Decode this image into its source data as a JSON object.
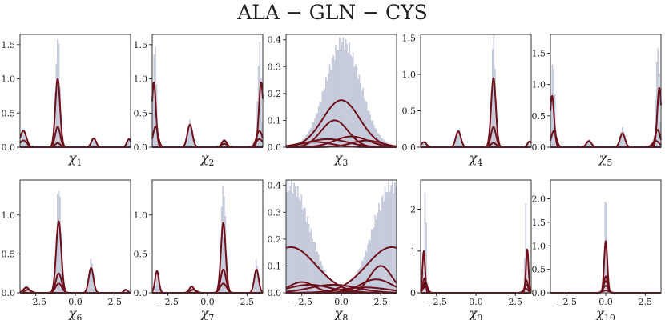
{
  "title": "ALA − GLN − CYS",
  "colors": {
    "hist": "#c6cbdc",
    "curve": "#6e0f1a",
    "axis": "#333333"
  },
  "chart_data": [
    {
      "type": "histogram+density",
      "xlabel": "χ",
      "xlabel_sub": "1",
      "xlim": [
        -3.3,
        3.3
      ],
      "ylim": [
        0,
        1.65
      ],
      "yticks": [
        0.0,
        0.5,
        1.0,
        1.5
      ],
      "yticklabels": [
        "0.0",
        "0.5",
        "1.0",
        "1.5"
      ],
      "xticks": [],
      "xticklabels": [],
      "hist_peaks": [
        {
          "mu": -3.1,
          "sigma": 0.12,
          "amp": 0.28
        },
        {
          "mu": -1.05,
          "sigma": 0.13,
          "amp": 1.6
        },
        {
          "mu": 1.1,
          "sigma": 0.12,
          "amp": 0.13
        },
        {
          "mu": 3.15,
          "sigma": 0.1,
          "amp": 0.12
        }
      ],
      "components": [
        {
          "mu": -1.05,
          "sigma": 0.14,
          "amp": 1.0
        },
        {
          "mu": -1.05,
          "sigma": 0.15,
          "amp": 0.3
        },
        {
          "mu": -1.05,
          "sigma": 0.16,
          "amp": 0.06
        },
        {
          "mu": -3.1,
          "sigma": 0.18,
          "amp": 0.24
        },
        {
          "mu": -3.1,
          "sigma": 0.2,
          "amp": 0.1
        },
        {
          "mu": 1.1,
          "sigma": 0.14,
          "amp": 0.13
        },
        {
          "mu": 3.2,
          "sigma": 0.12,
          "amp": 0.12
        }
      ]
    },
    {
      "type": "histogram+density",
      "xlabel": "χ",
      "xlabel_sub": "2",
      "xlim": [
        -3.3,
        3.3
      ],
      "ylim": [
        0,
        1.65
      ],
      "yticks": [
        0.0,
        0.5,
        1.0,
        1.5
      ],
      "yticklabels": [
        "0.0",
        "0.5",
        "1.0",
        "1.5"
      ],
      "xticks": [],
      "xticklabels": [],
      "hist_peaks": [
        {
          "mu": -3.15,
          "sigma": 0.1,
          "amp": 1.55
        },
        {
          "mu": -1.05,
          "sigma": 0.15,
          "amp": 0.38
        },
        {
          "mu": 1.0,
          "sigma": 0.15,
          "amp": 0.12
        },
        {
          "mu": 3.1,
          "sigma": 0.1,
          "amp": 1.5
        }
      ],
      "components": [
        {
          "mu": -3.2,
          "sigma": 0.12,
          "amp": 0.95
        },
        {
          "mu": -3.1,
          "sigma": 0.15,
          "amp": 0.3
        },
        {
          "mu": -1.05,
          "sigma": 0.15,
          "amp": 0.33
        },
        {
          "mu": 1.0,
          "sigma": 0.15,
          "amp": 0.1
        },
        {
          "mu": 1.0,
          "sigma": 0.18,
          "amp": 0.05
        },
        {
          "mu": 3.2,
          "sigma": 0.13,
          "amp": 0.95
        },
        {
          "mu": 3.1,
          "sigma": 0.18,
          "amp": 0.24
        },
        {
          "mu": 3.1,
          "sigma": 0.2,
          "amp": 0.12
        }
      ]
    },
    {
      "type": "histogram+density",
      "xlabel": "χ",
      "xlabel_sub": "3",
      "xlim": [
        -3.3,
        3.3
      ],
      "ylim": [
        0,
        0.42
      ],
      "yticks": [
        0.0,
        0.1,
        0.2,
        0.3,
        0.4
      ],
      "yticklabels": [
        "0.0",
        "0.1",
        "0.2",
        "0.3",
        "0.4"
      ],
      "xticks": [],
      "xticklabels": [],
      "hist_peaks": [
        {
          "mu": 0.1,
          "sigma": 1.05,
          "amp": 0.39
        }
      ],
      "components": [
        {
          "mu": 0.0,
          "sigma": 1.1,
          "amp": 0.175
        },
        {
          "mu": -0.4,
          "sigma": 0.8,
          "amp": 0.1
        },
        {
          "mu": 0.6,
          "sigma": 1.0,
          "amp": 0.04
        },
        {
          "mu": -0.8,
          "sigma": 1.2,
          "amp": 0.03
        },
        {
          "mu": 1.5,
          "sigma": 0.9,
          "amp": 0.025
        },
        {
          "mu": -1.6,
          "sigma": 1.0,
          "amp": 0.02
        }
      ]
    },
    {
      "type": "histogram+density",
      "xlabel": "χ",
      "xlabel_sub": "4",
      "xlim": [
        -3.3,
        3.3
      ],
      "ylim": [
        0,
        1.55
      ],
      "yticks": [
        0.0,
        0.5,
        1.0,
        1.5
      ],
      "yticklabels": [
        "0.0",
        "0.5",
        "1.0",
        "1.5"
      ],
      "xticks": [],
      "xticklabels": [],
      "hist_peaks": [
        {
          "mu": -3.1,
          "sigma": 0.1,
          "amp": 0.06
        },
        {
          "mu": -1.05,
          "sigma": 0.13,
          "amp": 0.26
        },
        {
          "mu": 1.05,
          "sigma": 0.12,
          "amp": 1.5
        },
        {
          "mu": 3.1,
          "sigma": 0.1,
          "amp": 0.06
        }
      ],
      "components": [
        {
          "mu": 1.05,
          "sigma": 0.14,
          "amp": 0.95
        },
        {
          "mu": 1.05,
          "sigma": 0.15,
          "amp": 0.28
        },
        {
          "mu": 1.05,
          "sigma": 0.16,
          "amp": 0.06
        },
        {
          "mu": -1.05,
          "sigma": 0.15,
          "amp": 0.22
        },
        {
          "mu": -3.1,
          "sigma": 0.15,
          "amp": 0.07
        },
        {
          "mu": 3.2,
          "sigma": 0.12,
          "amp": 0.08
        }
      ]
    },
    {
      "type": "histogram+density",
      "xlabel": "χ",
      "xlabel_sub": "5",
      "xlim": [
        -3.3,
        3.3
      ],
      "ylim": [
        0,
        1.8
      ],
      "yticks": [
        0.0,
        0.5,
        1.0,
        1.5
      ],
      "yticklabels": [
        "0.0",
        "0.5",
        "1.0",
        "1.5"
      ],
      "xticks": [],
      "xticklabels": [],
      "hist_peaks": [
        {
          "mu": -3.15,
          "sigma": 0.1,
          "amp": 1.4
        },
        {
          "mu": -1.0,
          "sigma": 0.13,
          "amp": 0.1
        },
        {
          "mu": 1.0,
          "sigma": 0.14,
          "amp": 0.3
        },
        {
          "mu": 3.1,
          "sigma": 0.1,
          "amp": 1.65
        }
      ],
      "components": [
        {
          "mu": -3.2,
          "sigma": 0.12,
          "amp": 0.82
        },
        {
          "mu": -3.1,
          "sigma": 0.15,
          "amp": 0.26
        },
        {
          "mu": -1.0,
          "sigma": 0.15,
          "amp": 0.1
        },
        {
          "mu": 1.0,
          "sigma": 0.15,
          "amp": 0.22
        },
        {
          "mu": 3.2,
          "sigma": 0.12,
          "amp": 0.95
        },
        {
          "mu": 3.1,
          "sigma": 0.15,
          "amp": 0.28
        },
        {
          "mu": 3.0,
          "sigma": 0.2,
          "amp": 0.1
        }
      ]
    },
    {
      "type": "histogram+density",
      "xlabel": "χ",
      "xlabel_sub": "6",
      "xlim": [
        -3.5,
        3.5
      ],
      "ylim": [
        0,
        1.45
      ],
      "yticks": [
        0.0,
        0.5,
        1.0
      ],
      "yticklabels": [
        "0.0",
        "0.5",
        "1.0"
      ],
      "xticks": [
        -2.5,
        0.0,
        2.5
      ],
      "xticklabels": [
        "−2.5",
        "0.0",
        "2.5"
      ],
      "hist_peaks": [
        {
          "mu": -3.1,
          "sigma": 0.12,
          "amp": 0.1
        },
        {
          "mu": -1.05,
          "sigma": 0.14,
          "amp": 1.4
        },
        {
          "mu": 1.0,
          "sigma": 0.13,
          "amp": 0.42
        },
        {
          "mu": 3.15,
          "sigma": 0.1,
          "amp": 0.05
        }
      ],
      "components": [
        {
          "mu": -1.05,
          "sigma": 0.16,
          "amp": 0.92
        },
        {
          "mu": -1.05,
          "sigma": 0.18,
          "amp": 0.25
        },
        {
          "mu": -1.05,
          "sigma": 0.2,
          "amp": 0.12
        },
        {
          "mu": 1.0,
          "sigma": 0.15,
          "amp": 0.32
        },
        {
          "mu": -3.1,
          "sigma": 0.18,
          "amp": 0.07
        },
        {
          "mu": -3.0,
          "sigma": 0.2,
          "amp": 0.04
        },
        {
          "mu": 3.2,
          "sigma": 0.12,
          "amp": 0.04
        }
      ]
    },
    {
      "type": "histogram+density",
      "xlabel": "χ",
      "xlabel_sub": "7",
      "xlim": [
        -3.5,
        3.5
      ],
      "ylim": [
        0,
        1.45
      ],
      "yticks": [
        0.0,
        0.5,
        1.0
      ],
      "yticklabels": [
        "0.0",
        "0.5",
        "1.0"
      ],
      "xticks": [
        -2.5,
        0.0,
        2.5
      ],
      "xticklabels": [
        "−2.5",
        "0.0",
        "2.5"
      ],
      "hist_peaks": [
        {
          "mu": -3.15,
          "sigma": 0.1,
          "amp": 0.28
        },
        {
          "mu": -1.0,
          "sigma": 0.13,
          "amp": 0.1
        },
        {
          "mu": 1.0,
          "sigma": 0.14,
          "amp": 1.4
        },
        {
          "mu": 3.1,
          "sigma": 0.1,
          "amp": 0.42
        }
      ],
      "components": [
        {
          "mu": 1.0,
          "sigma": 0.15,
          "amp": 0.9
        },
        {
          "mu": 1.0,
          "sigma": 0.17,
          "amp": 0.3
        },
        {
          "mu": 1.0,
          "sigma": 0.2,
          "amp": 0.12
        },
        {
          "mu": -3.2,
          "sigma": 0.12,
          "amp": 0.28
        },
        {
          "mu": -1.0,
          "sigma": 0.15,
          "amp": 0.08
        },
        {
          "mu": -0.9,
          "sigma": 0.2,
          "amp": 0.04
        },
        {
          "mu": 3.1,
          "sigma": 0.14,
          "amp": 0.3
        }
      ]
    },
    {
      "type": "histogram+density",
      "xlabel": "χ",
      "xlabel_sub": "8",
      "xlim": [
        -3.5,
        3.5
      ],
      "ylim": [
        0,
        0.42
      ],
      "yticks": [
        0.0,
        0.1,
        0.2,
        0.3,
        0.4
      ],
      "yticklabels": [
        "0.0",
        "0.1",
        "0.2",
        "0.3",
        "0.4"
      ],
      "xticks": [
        -2.5,
        0.0,
        2.5
      ],
      "xticklabels": [
        "−2.5",
        "0.0",
        "2.5"
      ],
      "hist_peaks": [
        {
          "mu": -3.2,
          "sigma": 1.2,
          "amp": 0.4
        },
        {
          "mu": 3.2,
          "sigma": 1.2,
          "amp": 0.4
        }
      ],
      "components": [
        {
          "mu": -3.2,
          "sigma": 1.6,
          "amp": 0.17
        },
        {
          "mu": 3.2,
          "sigma": 1.6,
          "amp": 0.17
        },
        {
          "mu": 2.5,
          "sigma": 0.7,
          "amp": 0.1
        },
        {
          "mu": -2.5,
          "sigma": 0.8,
          "amp": 0.04
        },
        {
          "mu": 2.2,
          "sigma": 1.0,
          "amp": 0.05
        },
        {
          "mu": -0.5,
          "sigma": 1.5,
          "amp": 0.03
        },
        {
          "mu": -2.0,
          "sigma": 1.3,
          "amp": 0.03
        },
        {
          "mu": 1.5,
          "sigma": 1.5,
          "amp": 0.02
        }
      ]
    },
    {
      "type": "histogram+density",
      "xlabel": "χ",
      "xlabel_sub": "9",
      "xlim": [
        -3.5,
        3.5
      ],
      "ylim": [
        0,
        2.7
      ],
      "yticks": [
        0,
        1,
        2
      ],
      "yticklabels": [
        "0",
        "1",
        "2"
      ],
      "xticks": [
        -2.5,
        0.0,
        2.5
      ],
      "xticklabels": [
        "−2.5",
        "0.0",
        "2.5"
      ],
      "hist_peaks": [
        {
          "mu": -3.2,
          "sigma": 0.06,
          "amp": 2.5
        },
        {
          "mu": 3.15,
          "sigma": 0.06,
          "amp": 2.0
        }
      ],
      "components": [
        {
          "mu": -3.3,
          "sigma": 0.08,
          "amp": 1.0
        },
        {
          "mu": -3.25,
          "sigma": 0.1,
          "amp": 0.35
        },
        {
          "mu": -3.2,
          "sigma": 0.12,
          "amp": 0.25
        },
        {
          "mu": -3.2,
          "sigma": 0.15,
          "amp": 0.15
        },
        {
          "mu": 3.25,
          "sigma": 0.08,
          "amp": 1.05
        },
        {
          "mu": 3.2,
          "sigma": 0.1,
          "amp": 0.3
        },
        {
          "mu": 3.2,
          "sigma": 0.12,
          "amp": 0.2
        },
        {
          "mu": 3.15,
          "sigma": 0.15,
          "amp": 0.1
        }
      ]
    },
    {
      "type": "histogram+density",
      "xlabel": "χ",
      "xlabel_sub": "10",
      "xlim": [
        -3.5,
        3.5
      ],
      "ylim": [
        0,
        2.4
      ],
      "yticks": [
        0.0,
        0.5,
        1.0,
        1.5,
        2.0
      ],
      "yticklabels": [
        "0.0",
        "0.5",
        "1.0",
        "1.5",
        "2.0"
      ],
      "xticks": [
        -2.5,
        0.0,
        2.5
      ],
      "xticklabels": [
        "−2.5",
        "0.0",
        "2.5"
      ],
      "hist_peaks": [
        {
          "mu": 0.0,
          "sigma": 0.07,
          "amp": 2.3
        }
      ],
      "components": [
        {
          "mu": 0.0,
          "sigma": 0.1,
          "amp": 1.1
        },
        {
          "mu": 0.0,
          "sigma": 0.12,
          "amp": 0.35
        },
        {
          "mu": 0.0,
          "sigma": 0.14,
          "amp": 0.25
        },
        {
          "mu": 0.0,
          "sigma": 0.16,
          "amp": 0.15
        },
        {
          "mu": 0.0,
          "sigma": 0.2,
          "amp": 0.05
        }
      ]
    }
  ]
}
